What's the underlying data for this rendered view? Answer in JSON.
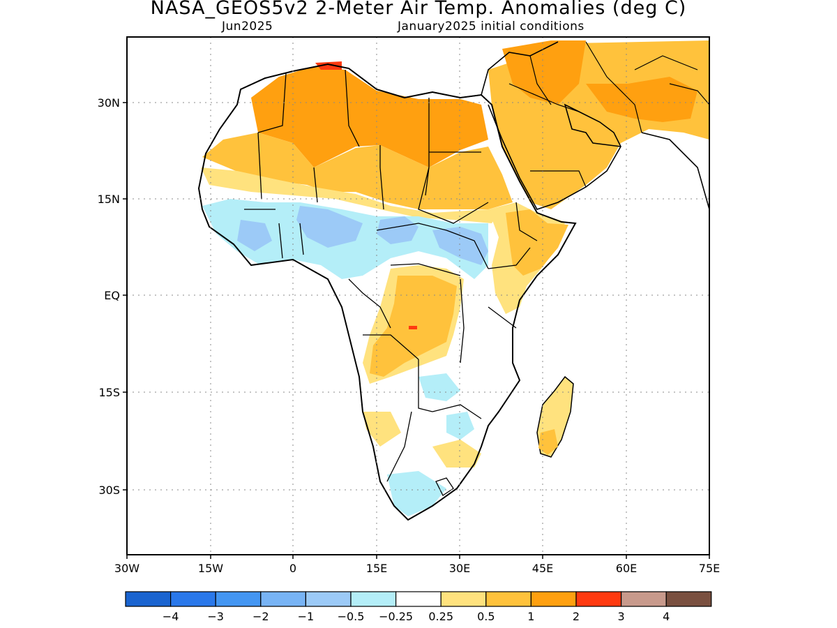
{
  "title": "NASA_GEOS5v2 2-Meter Air Temp. Anomalies (deg C)",
  "subtitle_left": "Jun2025",
  "subtitle_right": "January2025 initial conditions",
  "lat_labels": [
    "30N",
    "15N",
    "EQ",
    "15S",
    "30S"
  ],
  "lon_labels": [
    "30W",
    "15W",
    "0",
    "15E",
    "30E",
    "45E",
    "60E",
    "75E"
  ],
  "colorbar": {
    "colors": [
      "#1a64d0",
      "#2a78ea",
      "#4496f2",
      "#78b4f5",
      "#9ccaf7",
      "#b4eef8",
      "#ffffff",
      "#ffe27e",
      "#ffc23c",
      "#ffa010",
      "#ff3a10",
      "#c89a8c",
      "#7a5040"
    ],
    "labels": [
      "−4",
      "−3",
      "−2",
      "−1",
      "−0.5",
      "−0.25",
      "0.25",
      "0.5",
      "1",
      "2",
      "3",
      "4"
    ]
  }
}
